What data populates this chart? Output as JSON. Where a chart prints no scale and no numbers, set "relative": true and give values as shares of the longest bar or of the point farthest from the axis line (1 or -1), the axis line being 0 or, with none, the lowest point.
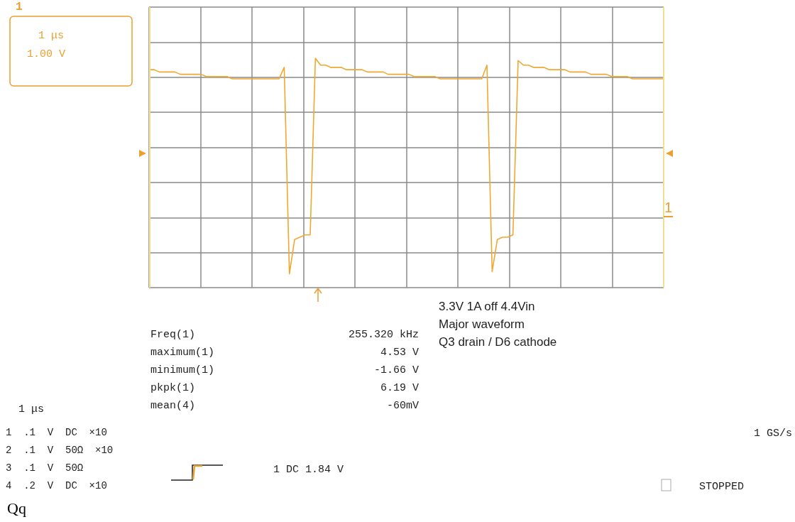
{
  "chart_data": {
    "type": "line",
    "relative": true,
    "grid": true,
    "marker": "none",
    "categories": [
      null,
      null,
      null,
      null,
      null,
      null,
      null,
      null,
      null,
      null,
      null,
      null,
      null,
      null,
      null,
      null,
      null,
      null,
      null,
      null,
      null,
      null,
      null,
      null,
      null,
      null,
      null,
      null,
      null,
      null,
      null,
      null,
      null,
      null,
      null,
      null,
      null,
      null,
      null,
      null,
      null,
      null,
      null,
      null,
      null,
      null,
      null,
      null,
      null,
      null,
      null,
      null,
      null,
      null,
      null,
      null,
      null,
      null,
      null,
      null,
      null,
      null,
      null,
      null,
      null,
      null,
      null,
      null,
      null,
      null,
      null,
      null,
      null,
      null,
      null,
      null,
      null,
      null,
      null,
      null,
      null,
      null,
      null,
      null,
      null,
      null,
      null,
      null,
      null,
      null,
      null,
      null,
      null,
      null,
      null,
      null,
      null,
      null,
      null,
      null
    ],
    "series": [
      {
        "color": "#f0a830",
        "values": [
          0.95,
          0.95,
          0.94,
          0.94,
          0.94,
          0.94,
          0.93,
          0.93,
          0.93,
          0.93,
          0.93,
          0.92,
          0.92,
          0.92,
          0.92,
          0.92,
          0.91,
          0.91,
          0.91,
          0.91,
          0.91,
          0.91,
          0.91,
          0.91,
          0.91,
          0.91,
          0.96,
          0.06,
          0.21,
          0.22,
          0.23,
          0.23,
          1.0,
          0.97,
          0.97,
          0.96,
          0.96,
          0.96,
          0.95,
          0.95,
          0.95,
          0.95,
          0.94,
          0.94,
          0.94,
          0.94,
          0.93,
          0.93,
          0.93,
          0.93,
          0.93,
          0.92,
          0.92,
          0.92,
          0.92,
          0.92,
          0.91,
          0.91,
          0.91,
          0.91,
          0.91,
          0.91,
          0.91,
          0.91,
          0.91,
          0.97,
          0.07,
          0.21,
          0.22,
          0.22,
          0.23,
          0.99,
          0.97,
          0.97,
          0.96,
          0.96,
          0.96,
          0.95,
          0.95,
          0.95,
          0.95,
          0.94,
          0.94,
          0.94,
          0.94,
          0.93,
          0.93,
          0.93,
          0.93,
          0.92,
          0.92,
          0.92,
          0.92,
          0.91,
          0.91,
          0.91,
          0.91,
          0.91,
          0.91,
          0.91
        ]
      }
    ],
    "annotations": [
      "1",
      "1 μs",
      "1.00 V",
      "3.3V 1A off 4.4Vin",
      "Major waveform",
      "Q3 drain / D6 cathode",
      "Freq(1)",
      "255.320 kHz",
      "maximum(1)",
      "4.53 V",
      "minimum(1)",
      "-1.66 V",
      "pkpk(1)",
      "6.19 V",
      "mean(4)",
      "-60mV",
      "1 μs",
      "1  .1  V  DC  ×10",
      "2  .1  V  50Ω  ×10",
      "3  .1  V  50Ω",
      "4  .2  V  DC  ×10",
      "1 DC 1.84 V",
      "1 GS/s",
      "STOPPED",
      "Qq",
      "1"
    ]
  }
}
